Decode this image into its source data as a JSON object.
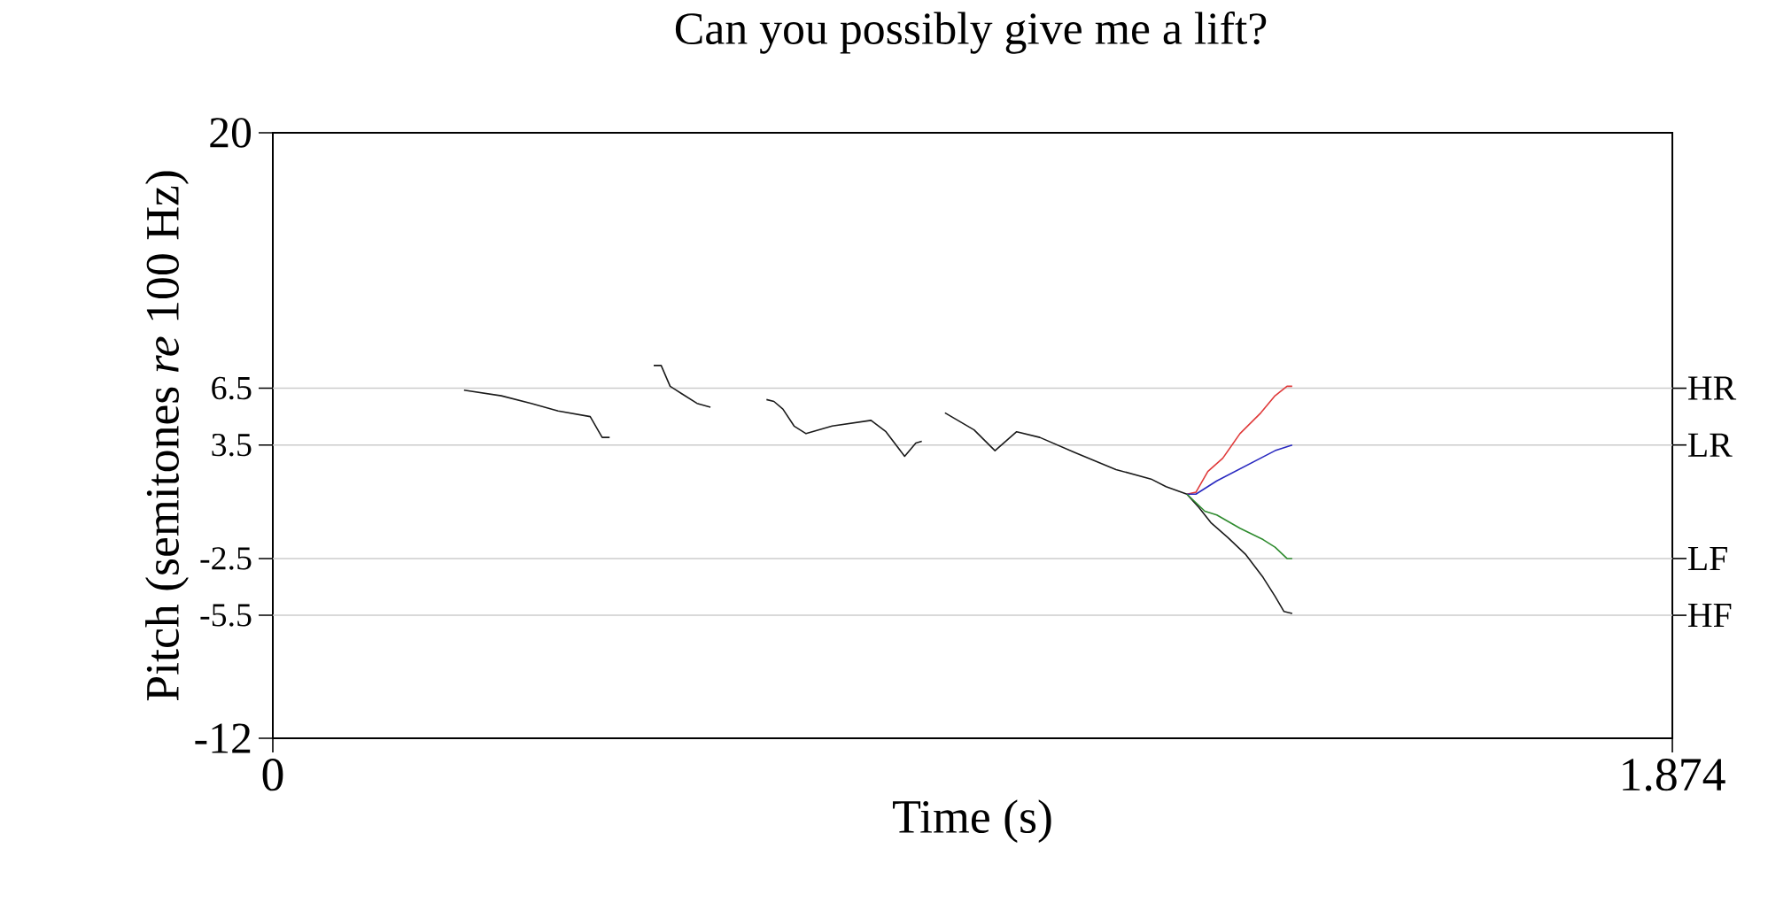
{
  "chart_data": {
    "type": "line",
    "title": "Can you possibly give me a lift?",
    "xlabel": "Time (s)",
    "ylabel": "Pitch (semitones *re* 100 Hz)",
    "xlim": [
      0,
      1.874
    ],
    "xticks": [
      0,
      1.874
    ],
    "ylim": [
      -12,
      20
    ],
    "yticks": [
      20,
      6.5,
      3.5,
      -2.5,
      -5.5,
      -12
    ],
    "ref_lines": [
      {
        "axis": "y",
        "value": 6.5,
        "label": "HR",
        "color": "#cccccc"
      },
      {
        "axis": "y",
        "value": 3.5,
        "label": "LR",
        "color": "#cccccc"
      },
      {
        "axis": "y",
        "value": -2.5,
        "label": "LF",
        "color": "#cccccc"
      },
      {
        "axis": "y",
        "value": -5.5,
        "label": "HF",
        "color": "#cccccc"
      }
    ],
    "series": [
      {
        "color": "#1a1a1a",
        "x": [
          0.256,
          0.306,
          0.346,
          0.382,
          0.425,
          0.441,
          0.451,
          0.48,
          0.51,
          0.52,
          0.532,
          0.548,
          0.568,
          0.586,
          0.62,
          0.661,
          0.671,
          0.683,
          0.698,
          0.714,
          0.749,
          0.801,
          0.821,
          0.846,
          0.861,
          0.869,
          0.88,
          0.9,
          0.939,
          0.967,
          0.996,
          1.027,
          1.074,
          1.129,
          1.176,
          1.196,
          1.224,
          1.24,
          1.256,
          1.279,
          1.303,
          1.326,
          1.342,
          1.354,
          1.365
        ],
        "values": [
          6.4,
          6.1,
          5.7,
          5.3,
          5.0,
          3.9,
          3.9,
          null,
          7.7,
          7.7,
          6.6,
          6.2,
          5.7,
          5.5,
          null,
          5.9,
          5.8,
          5.4,
          4.5,
          4.1,
          4.5,
          4.8,
          4.2,
          2.9,
          3.6,
          3.7,
          null,
          5.2,
          4.3,
          3.2,
          4.2,
          3.9,
          3.1,
          2.2,
          1.7,
          1.3,
          0.9,
          0.2,
          -0.6,
          -1.4,
          -2.3,
          -3.5,
          -4.5,
          -5.3,
          -5.4
        ]
      },
      {
        "color": "#e03a3a",
        "x": [
          1.224,
          1.236,
          1.252,
          1.272,
          1.295,
          1.323,
          1.342,
          1.358,
          1.365
        ],
        "values": [
          0.9,
          1.0,
          2.1,
          2.8,
          4.1,
          5.2,
          6.1,
          6.6,
          6.6
        ]
      },
      {
        "color": "#2a2ac0",
        "x": [
          1.224,
          1.236,
          1.264,
          1.303,
          1.342,
          1.365
        ],
        "values": [
          0.9,
          0.9,
          1.6,
          2.4,
          3.2,
          3.5
        ]
      },
      {
        "color": "#2e8b2e",
        "x": [
          1.224,
          1.248,
          1.264,
          1.295,
          1.326,
          1.342,
          1.358,
          1.365
        ],
        "values": [
          0.9,
          0.0,
          -0.2,
          -0.9,
          -1.5,
          -1.9,
          -2.5,
          -2.5
        ]
      }
    ]
  }
}
